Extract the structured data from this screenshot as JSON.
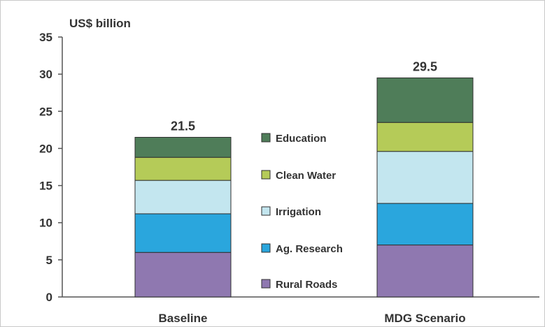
{
  "chart_data": {
    "type": "bar",
    "stacked": true,
    "unit_label": "US$ billion",
    "categories": [
      "Baseline",
      "MDG Scenario"
    ],
    "totals": [
      "21.5",
      "29.5"
    ],
    "y_ticks": [
      "0",
      "5",
      "10",
      "15",
      "20",
      "25",
      "30",
      "35"
    ],
    "ylim": [
      0,
      35
    ],
    "series": [
      {
        "name": "Rural Roads",
        "color": "#8f78b0",
        "values": [
          6.0,
          7.0
        ]
      },
      {
        "name": "Ag. Research",
        "color": "#2aa6dd",
        "values": [
          5.2,
          5.6
        ]
      },
      {
        "name": "Irrigation",
        "color": "#c3e6ef",
        "values": [
          4.5,
          7.0
        ]
      },
      {
        "name": "Clean Water",
        "color": "#b5cb58",
        "values": [
          3.1,
          3.9
        ]
      },
      {
        "name": "Education",
        "color": "#4f7d59",
        "values": [
          2.7,
          6.0
        ]
      }
    ],
    "legend_order": [
      "Education",
      "Clean Water",
      "Irrigation",
      "Ag. Research",
      "Rural Roads"
    ],
    "grid": false,
    "legend_position": "center"
  }
}
